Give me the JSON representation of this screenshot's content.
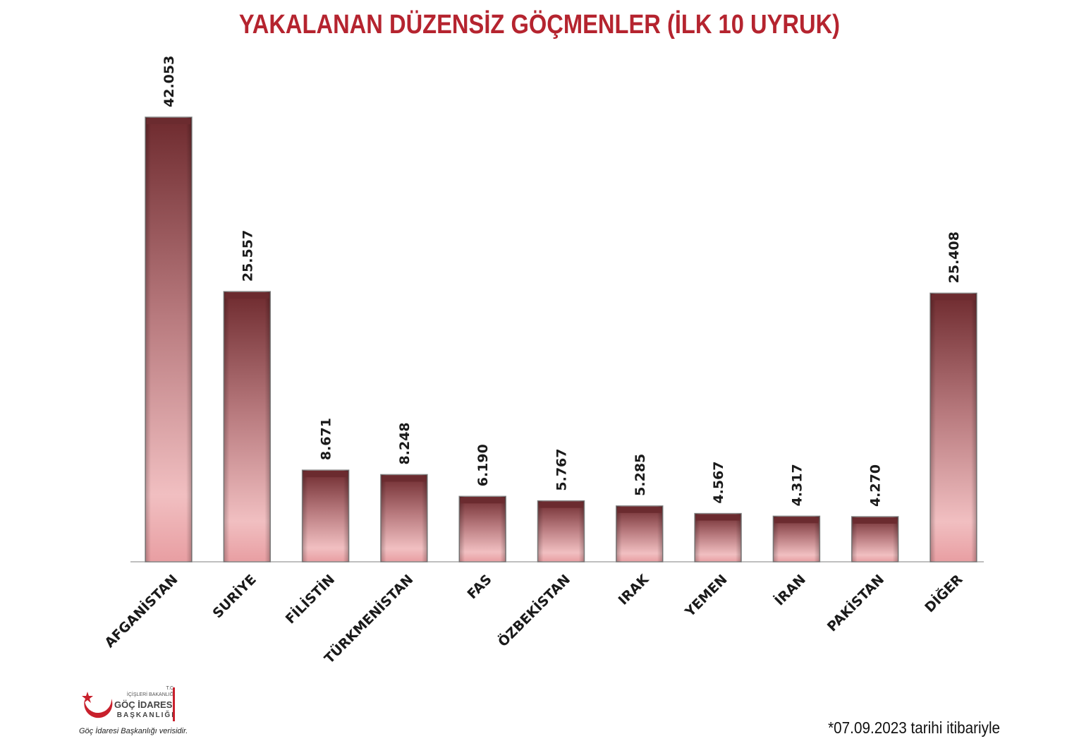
{
  "chart_data": {
    "type": "bar",
    "title": "YAKALANAN DÜZENSİZ GÖÇMENLER (İLK 10 UYRUK)",
    "categories": [
      "AFGANİSTAN",
      "SURİYE",
      "FİLİSTİN",
      "TÜRKMENİSTAN",
      "FAS",
      "ÖZBEKİSTAN",
      "IRAK",
      "YEMEN",
      "İRAN",
      "PAKİSTAN",
      "DİĞER"
    ],
    "values": [
      42053,
      25557,
      8671,
      8248,
      6190,
      5767,
      5285,
      4567,
      4317,
      4270,
      25408
    ],
    "value_labels": [
      "42.053",
      "25.557",
      "8.671",
      "8.248",
      "6.190",
      "5.767",
      "5.285",
      "4.567",
      "4.317",
      "4.270",
      "25.408"
    ],
    "xlabel": "",
    "ylabel": "",
    "ylim": [
      0,
      42053
    ],
    "grid": false,
    "legend": "none",
    "colors": {
      "bar_top": "#6e2a2e",
      "bar_mid": "#c08387",
      "bar_bottom": "#f0b8ba",
      "bar_cap": "#6b2b2f",
      "title": "#b5242f"
    }
  },
  "logo": {
    "gov": "T.C.",
    "ministry": "İÇİŞLERİ BAKANLIĞI",
    "name_line1": "GÖÇ İDARESİ",
    "name_line2": "BAŞKANLIĞI",
    "source_note": "Göç İdaresi Başkanlığı verisidir.",
    "icon": "crescent-star-emblem-icon",
    "accent_color": "#c8202c"
  },
  "footnote": "*07.09.2023 tarihi itibariyle"
}
